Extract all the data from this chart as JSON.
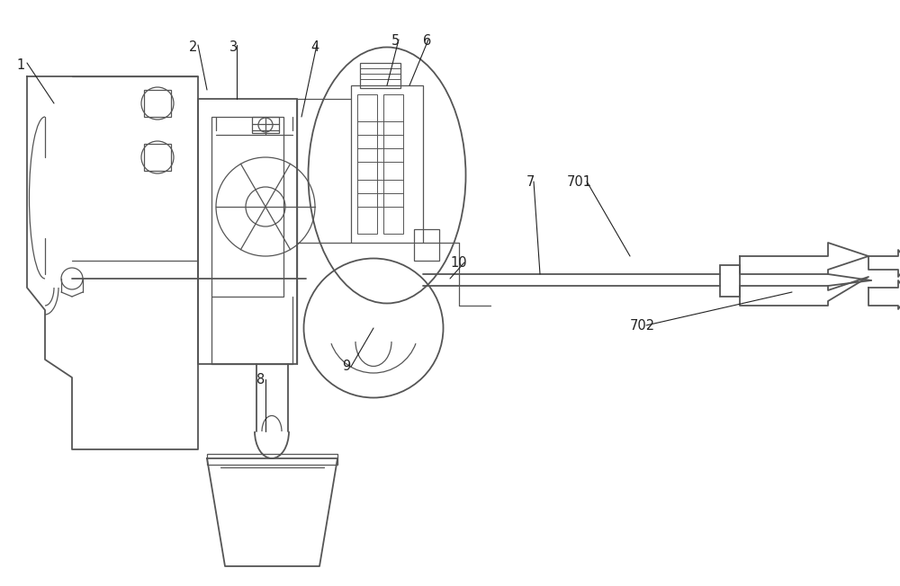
{
  "background_color": "#ffffff",
  "line_color": "#555555",
  "figure_width": 10.0,
  "figure_height": 6.52,
  "dpi": 100
}
